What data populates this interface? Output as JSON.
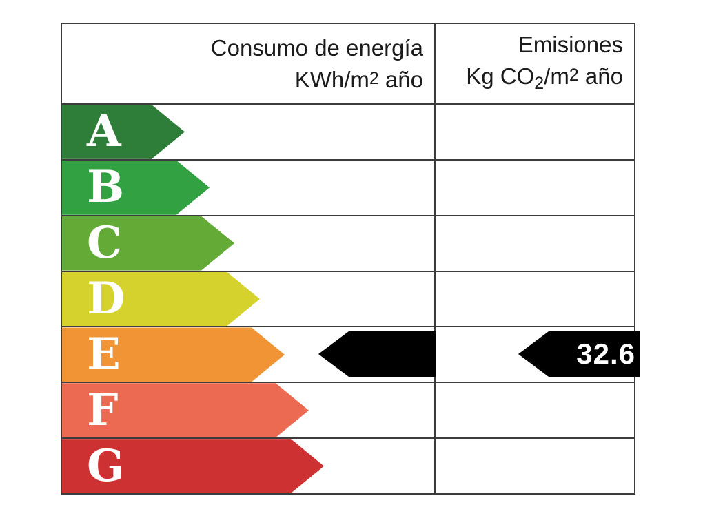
{
  "chart_data": {
    "type": "bar",
    "chart_kind": "energy-efficiency-rating-scale",
    "columns": [
      {
        "id": "consumo",
        "title_line1": "Consumo de energía",
        "title_line2_parts": {
          "p1": "KWh/m",
          "sup": "2",
          "p2": " año"
        }
      },
      {
        "id": "emisiones",
        "title_line1": "Emisiones",
        "title_line2_parts": {
          "p1": "Kg CO",
          "sub": "2",
          "p2": "/m",
          "sup": "2",
          "p3": " año"
        }
      }
    ],
    "categories": [
      "A",
      "B",
      "C",
      "D",
      "E",
      "F",
      "G"
    ],
    "rows": [
      {
        "letter": "A",
        "color": "#2e7d39",
        "arrow_length": 178
      },
      {
        "letter": "B",
        "color": "#31a142",
        "arrow_length": 214
      },
      {
        "letter": "C",
        "color": "#63ab36",
        "arrow_length": 250
      },
      {
        "letter": "D",
        "color": "#d5d22d",
        "arrow_length": 287
      },
      {
        "letter": "E",
        "color": "#f19435",
        "arrow_length": 323
      },
      {
        "letter": "F",
        "color": "#ec6a51",
        "arrow_length": 358
      },
      {
        "letter": "G",
        "color": "#cd3132",
        "arrow_length": 380
      }
    ],
    "indicators": {
      "consumo": {
        "rating": "E",
        "value_label": ""
      },
      "emisiones": {
        "rating": "E",
        "value_label": "32.6"
      }
    },
    "legend_position": "none",
    "grid": "table-borders"
  },
  "styles": {
    "background": "#ffffff",
    "border_color": "#3c3c3c",
    "indicator_color": "#000000",
    "letter_color": "#ffffff",
    "header_text_color": "#1b1b1b"
  }
}
